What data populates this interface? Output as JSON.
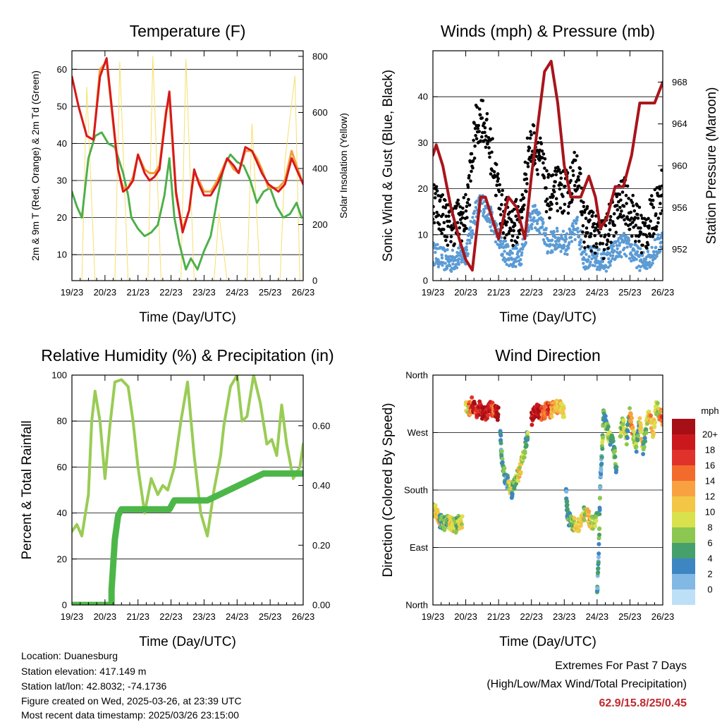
{
  "colors": {
    "temp_red": "#d7191c",
    "temp_orange": "#f29e3b",
    "dewpoint_green": "#4daf4a",
    "solar_yellow": "#f6df6a",
    "wind_blue": "#5b9bd5",
    "gust_black": "#000000",
    "pressure_maroon": "#a8151b",
    "rh_lightgreen": "#99cc55",
    "precip_green": "#4cb748",
    "extremes_red": "#c0282e"
  },
  "info": {
    "location": "Location: Duanesburg",
    "elevation": "Station elevation: 417.149 m",
    "latlon": "Station lat/lon: 42.8032; -74.1736",
    "created": "Figure created on Wed, 2025-03-26, at 23:39 UTC",
    "recent": "Most recent data timestamp: 2025/03/26 23:15:00"
  },
  "extremes": {
    "title": "Extremes For Past 7 Days",
    "subtitle": "(High/Low/Max Wind/Total Precipitation)",
    "value": "62.9/15.8/25/0.45"
  },
  "chart_data": [
    {
      "id": "temperature",
      "type": "line",
      "title": "Temperature (F)",
      "xlabel": "Time (Day/UTC)",
      "ylabel": "2m & 9m T (Red, Orange) & 2m Td (Green)",
      "y2label": "Solar Insolation (Yellow)",
      "xticks": [
        "19/23",
        "20/23",
        "21/23",
        "22/23",
        "23/23",
        "24/23",
        "25/23",
        "26/23"
      ],
      "xlim": [
        0,
        7
      ],
      "ylim": [
        3,
        65
      ],
      "yticks": [
        10,
        20,
        30,
        40,
        50,
        60
      ],
      "y2lim": [
        0,
        820
      ],
      "y2ticks": [
        0,
        200,
        400,
        600,
        800
      ],
      "grid": true,
      "series": [
        {
          "axis": "y2",
          "color": "#f6df6a",
          "width": 1,
          "x": [
            0,
            0.3,
            0.45,
            0.7,
            0.85,
            1.3,
            1.45,
            1.7,
            1.85,
            2.3,
            2.45,
            2.7,
            2.9,
            3.3,
            3.45,
            3.7,
            3.85,
            4.3,
            4.45,
            4.7,
            4.85,
            5.3,
            5.45,
            5.7,
            5.85,
            6.3,
            6.45,
            6.75,
            6.9,
            7
          ],
          "y": [
            0,
            0,
            690,
            0,
            0,
            0,
            780,
            0,
            0,
            0,
            800,
            0,
            0,
            0,
            790,
            0,
            0,
            0,
            240,
            0,
            0,
            0,
            560,
            0,
            0,
            0,
            430,
            730,
            0,
            0
          ]
        },
        {
          "axis": "y",
          "color": "#4daf4a",
          "width": 3,
          "dotted": true,
          "x": [
            0,
            0.15,
            0.3,
            0.5,
            0.7,
            0.9,
            1.1,
            1.3,
            1.55,
            1.7,
            1.8,
            2.0,
            2.2,
            2.4,
            2.6,
            2.8,
            2.95,
            3.1,
            3.25,
            3.45,
            3.6,
            3.8,
            4.0,
            4.2,
            4.4,
            4.6,
            4.8,
            5.0,
            5.2,
            5.4,
            5.6,
            5.8,
            6.0,
            6.2,
            6.4,
            6.6,
            6.8,
            6.95
          ],
          "y": [
            27,
            23,
            20,
            36,
            42,
            43,
            40,
            39,
            32,
            26,
            20,
            17,
            15,
            16,
            18,
            26,
            36,
            20,
            13,
            6,
            9,
            6,
            11,
            15,
            25,
            34,
            37,
            35,
            34,
            30,
            24,
            27,
            28,
            23,
            20,
            21,
            24,
            20
          ]
        },
        {
          "axis": "y",
          "color": "#f29e3b",
          "width": 3,
          "x": [
            0,
            0.2,
            0.45,
            0.65,
            0.85,
            1.05,
            1.25,
            1.4,
            1.55,
            1.7,
            1.85,
            2.0,
            2.2,
            2.35,
            2.5,
            2.65,
            2.85,
            2.95,
            3.15,
            3.35,
            3.55,
            3.7,
            3.85,
            4.0,
            4.2,
            4.4,
            4.55,
            4.7,
            4.9,
            5.05,
            5.25,
            5.45,
            5.6,
            5.75,
            5.95,
            6.1,
            6.25,
            6.45,
            6.65,
            6.8,
            7
          ],
          "y": [
            58,
            50,
            42,
            41,
            60,
            62,
            45,
            33,
            28,
            28,
            31,
            37,
            33,
            32,
            32,
            34,
            49,
            52,
            26,
            17,
            22,
            32,
            30,
            27,
            27,
            30,
            33,
            36,
            33,
            32,
            38,
            38,
            36,
            33,
            28,
            28,
            28,
            30,
            38,
            34,
            29
          ]
        },
        {
          "axis": "y",
          "color": "#d7191c",
          "width": 3,
          "x": [
            0,
            0.2,
            0.45,
            0.65,
            0.85,
            1.05,
            1.25,
            1.4,
            1.55,
            1.7,
            1.85,
            2.0,
            2.2,
            2.35,
            2.5,
            2.65,
            2.85,
            2.95,
            3.15,
            3.35,
            3.55,
            3.7,
            3.85,
            4.0,
            4.2,
            4.4,
            4.55,
            4.7,
            4.9,
            5.05,
            5.25,
            5.45,
            5.6,
            5.75,
            5.95,
            6.1,
            6.25,
            6.45,
            6.65,
            6.8,
            7
          ],
          "y": [
            58,
            50,
            42,
            41,
            58,
            63,
            46,
            33,
            27,
            28,
            30,
            37,
            32,
            30,
            31,
            33,
            48,
            54,
            27,
            16,
            22,
            33,
            29,
            26,
            26,
            29,
            32,
            36,
            34,
            32,
            39,
            38,
            35,
            32,
            29,
            28,
            27,
            29,
            36,
            33,
            29
          ]
        }
      ]
    },
    {
      "id": "winds",
      "type": "scatter",
      "title": "Winds (mph) & Pressure (mb)",
      "xlabel": "Time (Day/UTC)",
      "ylabel": "Sonic Wind & Gust (Blue, Black)",
      "y2label": "Station Pressure (Maroon)",
      "xticks": [
        "19/23",
        "20/23",
        "21/23",
        "22/23",
        "23/23",
        "24/23",
        "25/23",
        "26/23"
      ],
      "xlim": [
        0,
        7
      ],
      "ylim": [
        0,
        50
      ],
      "yticks": [
        0,
        10,
        20,
        30,
        40
      ],
      "y2lim": [
        949,
        971
      ],
      "y2ticks": [
        952,
        956,
        960,
        964,
        968
      ],
      "grid": true,
      "series": [
        {
          "name": "gust",
          "color": "#000000",
          "x": [
            0,
            0.5,
            1.0,
            1.3,
            1.5,
            1.8,
            2.1,
            2.4,
            2.7,
            2.9,
            3.1,
            3.3,
            3.5,
            3.8,
            4.1,
            4.4,
            4.6,
            4.9,
            5.2,
            5.5,
            5.8,
            6.1,
            6.4,
            6.7,
            7.0
          ],
          "y": [
            18,
            12,
            14,
            33,
            36,
            27,
            15,
            12,
            14,
            28,
            30,
            26,
            18,
            20,
            19,
            25,
            12,
            11,
            9,
            14,
            18,
            14,
            10,
            14,
            20
          ]
        },
        {
          "name": "wind",
          "color": "#5b9bd5",
          "x": [
            0,
            0.5,
            1.0,
            1.3,
            1.5,
            1.8,
            2.1,
            2.4,
            2.7,
            2.9,
            3.1,
            3.3,
            3.5,
            3.8,
            4.1,
            4.4,
            4.6,
            4.9,
            5.2,
            5.5,
            5.8,
            6.1,
            6.4,
            6.7,
            7.0
          ],
          "y": [
            6,
            4,
            6,
            15,
            17,
            13,
            7,
            5,
            6,
            13,
            14,
            12,
            8,
            9,
            8,
            12,
            5,
            5,
            4,
            6,
            8,
            6,
            4,
            6,
            9
          ]
        },
        {
          "name": "pressure",
          "axis": "y2",
          "color": "#a8151b",
          "line": true,
          "x": [
            0,
            0.1,
            0.3,
            0.55,
            0.8,
            1.0,
            1.2,
            1.45,
            1.6,
            1.8,
            2.0,
            2.3,
            2.55,
            2.8,
            3.0,
            3.2,
            3.4,
            3.6,
            3.8,
            4.0,
            4.2,
            4.5,
            4.75,
            4.95,
            5.1,
            5.3,
            5.55,
            5.8,
            6.05,
            6.3,
            6.5,
            6.75,
            7.0
          ],
          "y": [
            961,
            962,
            960,
            956,
            953,
            951,
            950,
            957,
            957,
            955,
            953,
            957,
            956,
            953,
            959,
            964,
            969,
            970,
            966,
            960,
            957,
            957,
            959,
            957,
            954,
            955,
            958,
            958,
            961,
            966,
            966,
            966,
            968
          ]
        }
      ]
    },
    {
      "id": "humidity",
      "type": "line",
      "title": "Relative Humidity (%) & Precipitation (in)",
      "xlabel": "Time (Day/UTC)",
      "ylabel": "Percent & Total Rainfall",
      "xticks": [
        "19/23",
        "20/23",
        "21/23",
        "22/23",
        "23/23",
        "24/23",
        "25/23",
        "26/23"
      ],
      "xlim": [
        0,
        7
      ],
      "ylim": [
        0,
        100
      ],
      "yticks": [
        0,
        20,
        40,
        60,
        80,
        100
      ],
      "y2lim": [
        0,
        0.7695
      ],
      "y2ticks": [
        0.0,
        0.2,
        0.4,
        0.6
      ],
      "y2ticklabels": [
        "0.00",
        "0.20",
        "0.40",
        "0.60"
      ],
      "grid": true,
      "series": [
        {
          "name": "rh",
          "color": "#99cc55",
          "width": 4,
          "x": [
            0,
            0.15,
            0.3,
            0.5,
            0.6,
            0.7,
            0.85,
            1.0,
            1.15,
            1.3,
            1.5,
            1.7,
            1.85,
            2.0,
            2.2,
            2.4,
            2.6,
            2.75,
            2.9,
            3.1,
            3.3,
            3.5,
            3.7,
            3.9,
            4.1,
            4.3,
            4.5,
            4.6,
            4.8,
            5.0,
            5.15,
            5.3,
            5.5,
            5.7,
            5.9,
            6.05,
            6.2,
            6.35,
            6.5,
            6.7,
            6.9,
            7.0
          ],
          "y": [
            32,
            35,
            30,
            48,
            80,
            93,
            80,
            55,
            78,
            97,
            98,
            95,
            80,
            60,
            40,
            55,
            48,
            52,
            50,
            60,
            80,
            97,
            65,
            40,
            30,
            50,
            65,
            78,
            95,
            100,
            80,
            82,
            100,
            88,
            70,
            72,
            65,
            87,
            70,
            55,
            60,
            70
          ]
        },
        {
          "name": "precip",
          "axis": "y2",
          "color": "#4cb748",
          "width": 9,
          "x": [
            0,
            1.2,
            1.2,
            1.3,
            1.4,
            1.5,
            2.0,
            2.95,
            3.1,
            3.3,
            3.95,
            4.1,
            5.8,
            6.0,
            7.0
          ],
          "y": [
            0.0,
            0.0,
            0.05,
            0.22,
            0.3,
            0.32,
            0.32,
            0.32,
            0.35,
            0.35,
            0.35,
            0.35,
            0.44,
            0.44,
            0.44
          ]
        }
      ]
    },
    {
      "id": "direction",
      "type": "scatter",
      "title": "Wind Direction",
      "xlabel": "Time (Day/UTC)",
      "ylabel": "Direction (Colored By Speed)",
      "xticks": [
        "19/23",
        "20/23",
        "21/23",
        "22/23",
        "23/23",
        "24/23",
        "25/23",
        "26/23"
      ],
      "xlim": [
        0,
        7
      ],
      "ylim": [
        0,
        360
      ],
      "yticks": [
        0,
        90,
        180,
        270,
        360
      ],
      "yticklabels": [
        "North",
        "East",
        "South",
        "West",
        "North"
      ],
      "grid": true,
      "colorbar": {
        "title": "mph",
        "labels": [
          "20+",
          "18",
          "16",
          "14",
          "12",
          "10",
          "8",
          "6",
          "4",
          "2",
          "0"
        ],
        "colors": [
          "#a50f15",
          "#cb181d",
          "#e0322b",
          "#f26b2c",
          "#f8a140",
          "#f3c646",
          "#d9e14c",
          "#8cc751",
          "#45a06b",
          "#3d86c2",
          "#82b8e4",
          "#bde0f6"
        ]
      },
      "series": [
        {
          "x": [
            0,
            0.1,
            0.2,
            0.3,
            0.4,
            0.5,
            0.6,
            0.7,
            0.8,
            0.9
          ],
          "y": [
            150,
            146,
            133,
            128,
            127,
            131,
            126,
            124,
            131,
            129
          ],
          "speed": [
            8,
            10,
            4,
            6,
            5,
            9,
            7,
            5,
            9,
            10
          ]
        },
        {
          "x": [
            1.0,
            1.1,
            1.2,
            1.3,
            1.4,
            1.5,
            1.6,
            1.7,
            1.8,
            1.9,
            2.0
          ],
          "y": [
            310,
            305,
            317,
            302,
            310,
            301,
            298,
            309,
            306,
            305,
            299
          ],
          "speed": [
            9,
            14,
            20,
            16,
            18,
            21,
            18,
            17,
            14,
            20,
            16
          ]
        },
        {
          "x": [
            2.05,
            2.1,
            2.2,
            2.3,
            2.4,
            2.5,
            2.6,
            2.7,
            2.8,
            2.9
          ],
          "y": [
            270,
            230,
            198,
            190,
            178,
            196,
            205,
            222,
            245,
            270
          ],
          "speed": [
            3,
            4,
            2,
            8,
            4,
            6,
            9,
            7,
            5,
            10
          ]
        },
        {
          "x": [
            3.0,
            3.1,
            3.2,
            3.3,
            3.4,
            3.5,
            3.6,
            3.7,
            3.8,
            3.9,
            4.0
          ],
          "y": [
            290,
            302,
            305,
            300,
            302,
            310,
            301,
            314,
            308,
            310,
            300
          ],
          "speed": [
            19,
            18,
            20,
            15,
            14,
            17,
            12,
            11,
            10,
            9,
            8
          ]
        },
        {
          "x": [
            4.05,
            4.1,
            4.2,
            4.3,
            4.45,
            4.6,
            4.7,
            4.8,
            4.9,
            5.0
          ],
          "y": [
            180,
            140,
            130,
            126,
            125,
            143,
            140,
            131,
            128,
            140
          ],
          "speed": [
            3,
            4,
            6,
            9,
            10,
            5,
            11,
            8,
            6,
            4
          ]
        },
        {
          "x": [
            5.0,
            5.05,
            5.1,
            5.15,
            5.2,
            5.3,
            5.4,
            5.5,
            5.6
          ],
          "y": [
            20,
            80,
            190,
            240,
            300,
            275,
            260,
            250,
            210
          ],
          "speed": [
            3,
            4,
            2,
            5,
            4,
            6,
            3,
            4,
            2
          ]
        },
        {
          "x": [
            5.7,
            5.8,
            5.9,
            6.0,
            6.1,
            6.2,
            6.3,
            6.4,
            6.5,
            6.6,
            6.7,
            6.8,
            6.9,
            7.0
          ],
          "y": [
            270,
            290,
            260,
            300,
            270,
            250,
            290,
            240,
            280,
            300,
            270,
            310,
            300,
            290
          ],
          "speed": [
            7,
            8,
            5,
            12,
            6,
            4,
            10,
            3,
            8,
            11,
            9,
            7,
            13,
            12
          ]
        }
      ]
    }
  ]
}
